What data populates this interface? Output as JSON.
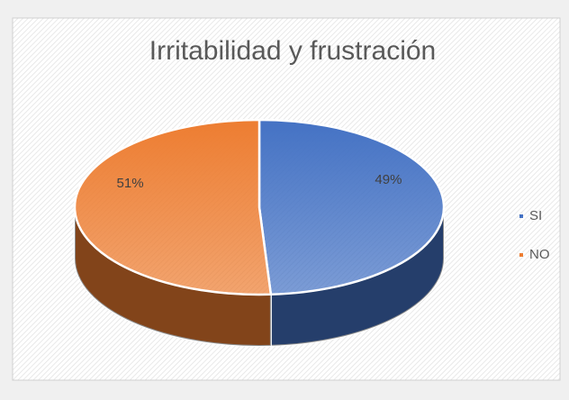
{
  "chart_data": {
    "type": "pie",
    "title": "Irritabilidad y frustración",
    "categories": [
      "SI",
      "NO"
    ],
    "values": [
      49,
      51
    ],
    "value_labels": [
      "49%",
      "51%"
    ],
    "colors": [
      "#4472c4",
      "#ed7d31"
    ],
    "legend": "right"
  }
}
